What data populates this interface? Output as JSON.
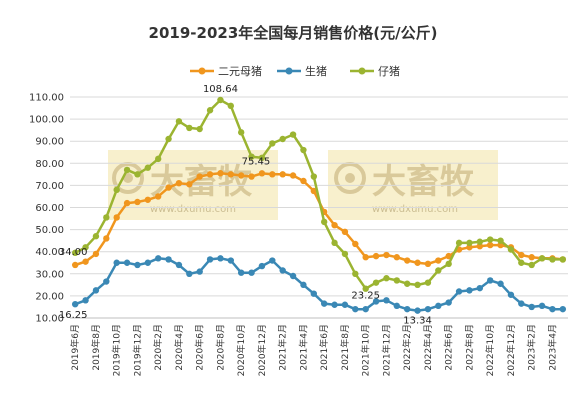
{
  "chart_data": {
    "type": "line",
    "title": "2019-2023年全国每月销售价格(元/公斤)",
    "xlabel": "",
    "ylabel": "",
    "ylim": [
      10,
      110
    ],
    "yticks": [
      "10.00",
      "20.00",
      "30.00",
      "40.00",
      "50.00",
      "60.00",
      "70.00",
      "80.00",
      "90.00",
      "100.00",
      "110.00"
    ],
    "grid": true,
    "legend_position": "top",
    "x": [
      "2019年6月",
      "2019年7月",
      "2019年8月",
      "2019年9月",
      "2019年10月",
      "2019年11月",
      "2019年12月",
      "2020年1月",
      "2020年2月",
      "2020年3月",
      "2020年4月",
      "2020年5月",
      "2020年6月",
      "2020年7月",
      "2020年8月",
      "2020年9月",
      "2020年10月",
      "2020年11月",
      "2020年12月",
      "2021年1月",
      "2021年2月",
      "2021年3月",
      "2021年4月",
      "2021年5月",
      "2021年6月",
      "2021年7月",
      "2021年8月",
      "2021年9月",
      "2021年10月",
      "2021年11月",
      "2021年12月",
      "2022年1月",
      "2022年2月",
      "2022年3月",
      "2022年4月",
      "2022年5月",
      "2022年6月",
      "2022年7月",
      "2022年8月",
      "2022年9月",
      "2022年10月",
      "2022年11月",
      "2022年12月",
      "2023年1月",
      "2023年2月",
      "2023年3月",
      "2023年4月",
      "2023年5月"
    ],
    "xtick_labels": [
      "2019年6月",
      "",
      "2019年8月",
      "",
      "2019年10月",
      "",
      "2019年12月",
      "",
      "2020年2月",
      "",
      "2020年4月",
      "",
      "2020年6月",
      "",
      "2020年8月",
      "",
      "2020年10月",
      "",
      "2020年12月",
      "",
      "2021年2月",
      "",
      "2021年4月",
      "",
      "2021年6月",
      "",
      "2021年8月",
      "",
      "2021年10月",
      "",
      "2021年12月",
      "",
      "2022年2月",
      "",
      "2022年4月",
      "",
      "2022年6月",
      "",
      "2022年8月",
      "",
      "2022年10月",
      "",
      "2022年12月",
      "",
      "2023年2月",
      "",
      "2023年4月",
      ""
    ],
    "series": [
      {
        "name": "二元母猪",
        "color": "#f0961e",
        "values": [
          34.0,
          35.5,
          39.0,
          46.0,
          55.5,
          62.0,
          62.5,
          63.5,
          65.0,
          69.0,
          71.0,
          70.5,
          74.0,
          75.0,
          75.5,
          75.0,
          74.5,
          74.0,
          75.45,
          75.0,
          75.0,
          74.5,
          72.0,
          67.5,
          58.0,
          52.0,
          49.0,
          43.5,
          37.5,
          38.0,
          38.5,
          37.5,
          36.0,
          35.0,
          34.5,
          36.0,
          38.0,
          41.0,
          42.0,
          42.5,
          43.0,
          43.0,
          42.0,
          38.5,
          37.5,
          37.0,
          37.0,
          36.5
        ]
      },
      {
        "name": "生猪",
        "color": "#3a88b5",
        "values": [
          16.25,
          18.0,
          22.5,
          26.5,
          35.0,
          35.0,
          34.0,
          35.0,
          37.0,
          36.5,
          34.0,
          30.0,
          31.0,
          36.5,
          37.0,
          36.0,
          30.5,
          30.5,
          33.5,
          36.0,
          31.5,
          29.0,
          25.0,
          21.0,
          16.5,
          16.0,
          16.0,
          14.0,
          14.0,
          17.5,
          18.0,
          15.5,
          14.0,
          13.34,
          14.0,
          15.5,
          17.0,
          22.0,
          22.5,
          23.5,
          27.0,
          25.5,
          20.5,
          16.5,
          15.0,
          15.5,
          14.0,
          14.0
        ]
      },
      {
        "name": "仔猪",
        "color": "#9bb431",
        "values": [
          39.5,
          42.0,
          47.0,
          55.5,
          68.0,
          77.0,
          75.0,
          78.0,
          82.0,
          91.0,
          99.0,
          96.0,
          95.5,
          104.0,
          108.64,
          106.0,
          94.0,
          83.0,
          82.5,
          89.0,
          91.0,
          93.0,
          86.0,
          74.0,
          53.5,
          44.0,
          39.0,
          30.0,
          23.25,
          26.0,
          28.0,
          27.0,
          25.5,
          25.0,
          26.0,
          31.5,
          34.5,
          44.0,
          44.0,
          44.5,
          45.5,
          45.0,
          41.0,
          35.0,
          34.0,
          37.0,
          36.5,
          36.5
        ]
      }
    ],
    "data_labels": [
      {
        "text": "34.00",
        "series": "二元母猪",
        "x": "2019年6月"
      },
      {
        "text": "16.25",
        "series": "生猪",
        "x": "2019年6月"
      },
      {
        "text": "108.64",
        "series": "仔猪",
        "x": "2020年8月"
      },
      {
        "text": "75.45",
        "series": "二元母猪",
        "x": "2020年12月"
      },
      {
        "text": "23.25",
        "series": "仔猪",
        "x": "2021年10月"
      },
      {
        "text": "13.34",
        "series": "生猪",
        "x": "2022年3月"
      }
    ]
  },
  "watermark": {
    "brand_text": "大畜牧",
    "url_text": "www.dxumu.com"
  }
}
